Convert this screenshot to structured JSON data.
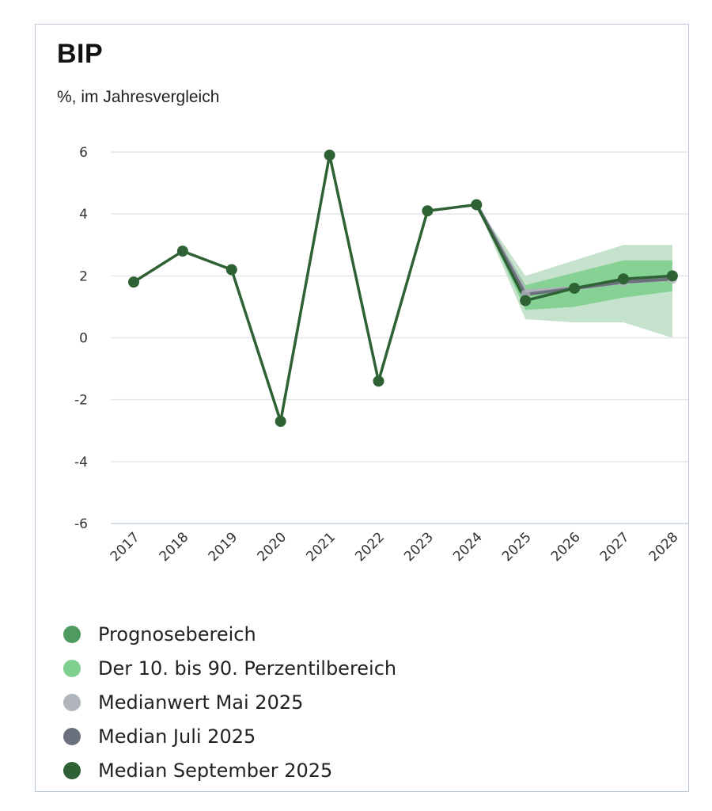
{
  "title": "BIP",
  "subtitle": "%, im Jahresvergleich",
  "colors": {
    "band_outer": "#c4e2cc",
    "band_inner": "#7fd08f",
    "median_may": "#aeb2ba",
    "median_july": "#6a707c",
    "median_sept": "#2e6133",
    "grid": "#e4e6ea",
    "axis": "#c9d3e3"
  },
  "legend": [
    {
      "label": "Prognosebereich",
      "color": "#4f9a5f",
      "icon": "circle-icon"
    },
    {
      "label": "Der 10. bis 90. Perzentilbereich",
      "color": "#7fd08f",
      "icon": "circle-icon"
    },
    {
      "label": "Medianwert Mai 2025",
      "color": "#b1b5bc",
      "icon": "circle-icon"
    },
    {
      "label": "Median Juli 2025",
      "color": "#6a707c",
      "icon": "circle-icon"
    },
    {
      "label": "Median September 2025",
      "color": "#2e6133",
      "icon": "circle-icon"
    }
  ],
  "chart_data": {
    "type": "line",
    "title": "BIP",
    "subtitle": "%, im Jahresvergleich",
    "xlabel": "",
    "ylabel": "",
    "ylim": [
      -6,
      6
    ],
    "yticks": [
      6,
      4,
      2,
      0,
      -2,
      -4,
      -6
    ],
    "categories": [
      "2017",
      "2018",
      "2019",
      "2020",
      "2021",
      "2022",
      "2023",
      "2024",
      "2025",
      "2026",
      "2027",
      "2028"
    ],
    "grid": true,
    "legend_position": "bottom",
    "series": [
      {
        "name": "Median September 2025",
        "values": [
          1.8,
          2.8,
          2.2,
          -2.7,
          5.9,
          -1.4,
          4.1,
          4.3,
          1.2,
          1.6,
          1.9,
          2.0
        ]
      },
      {
        "name": "Median Juli 2025",
        "values": [
          null,
          null,
          null,
          null,
          null,
          null,
          null,
          4.3,
          1.4,
          1.6,
          1.8,
          1.9
        ]
      },
      {
        "name": "Medianwert Mai 2025",
        "values": [
          null,
          null,
          null,
          null,
          null,
          null,
          null,
          4.3,
          1.5,
          1.6,
          1.8,
          1.9
        ]
      }
    ],
    "bands": [
      {
        "name": "Prognosebereich",
        "lower": [
          null,
          null,
          null,
          null,
          null,
          null,
          null,
          4.3,
          0.6,
          0.5,
          0.5,
          0.0
        ],
        "upper": [
          null,
          null,
          null,
          null,
          null,
          null,
          null,
          4.3,
          2.0,
          2.5,
          3.0,
          3.0
        ]
      },
      {
        "name": "Der 10. bis 90. Perzentilbereich",
        "lower": [
          null,
          null,
          null,
          null,
          null,
          null,
          null,
          4.3,
          0.9,
          1.0,
          1.3,
          1.5
        ],
        "upper": [
          null,
          null,
          null,
          null,
          null,
          null,
          null,
          4.3,
          1.7,
          2.1,
          2.5,
          2.5
        ]
      }
    ]
  }
}
